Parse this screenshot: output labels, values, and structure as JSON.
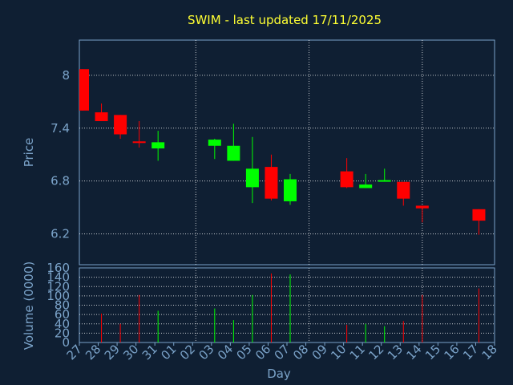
{
  "chart_data": {
    "title": "SWIM - last updated 17/11/2025",
    "price_chart": {
      "type": "candlestick",
      "ylabel": "Price",
      "ylim": [
        5.85,
        8.4
      ],
      "yticks": [
        "8",
        "7.4",
        "6.8",
        "6.2"
      ],
      "grid": true,
      "candles": [
        {
          "day": "27",
          "open": 8.07,
          "high": 8.07,
          "low": 7.6,
          "close": 7.6
        },
        {
          "day": "28",
          "open": 7.58,
          "high": 7.68,
          "low": 7.48,
          "close": 7.48
        },
        {
          "day": "29",
          "open": 7.55,
          "high": 7.55,
          "low": 7.28,
          "close": 7.33
        },
        {
          "day": "30",
          "open": 7.25,
          "high": 7.48,
          "low": 7.18,
          "close": 7.24
        },
        {
          "day": "31",
          "open": 7.17,
          "high": 7.37,
          "low": 7.03,
          "close": 7.24
        },
        {
          "day": "03",
          "open": 7.2,
          "high": 7.28,
          "low": 7.05,
          "close": 7.27
        },
        {
          "day": "04",
          "open": 7.03,
          "high": 7.45,
          "low": 7.03,
          "close": 7.2
        },
        {
          "day": "05",
          "open": 6.73,
          "high": 7.3,
          "low": 6.55,
          "close": 6.94
        },
        {
          "day": "06",
          "open": 6.96,
          "high": 7.1,
          "low": 6.58,
          "close": 6.6
        },
        {
          "day": "07",
          "open": 6.57,
          "high": 6.88,
          "low": 6.53,
          "close": 6.82
        },
        {
          "day": "10",
          "open": 6.91,
          "high": 7.06,
          "low": 6.72,
          "close": 6.73
        },
        {
          "day": "11",
          "open": 6.72,
          "high": 6.88,
          "low": 6.72,
          "close": 6.76
        },
        {
          "day": "12",
          "open": 6.8,
          "high": 6.94,
          "low": 6.8,
          "close": 6.81
        },
        {
          "day": "13",
          "open": 6.79,
          "high": 6.79,
          "low": 6.52,
          "close": 6.6
        },
        {
          "day": "14",
          "open": 6.52,
          "high": 6.52,
          "low": 6.33,
          "close": 6.49
        },
        {
          "day": "17",
          "open": 6.48,
          "high": 6.48,
          "low": 6.19,
          "close": 6.35
        }
      ]
    },
    "volume_chart": {
      "type": "bar",
      "ylabel": "Volume (0000)",
      "ylim": [
        0,
        160
      ],
      "yticks": [
        "160",
        "140",
        "120",
        "100",
        "80",
        "60",
        "40",
        "20",
        "0"
      ],
      "xlabel": "Day",
      "xticks": [
        "27",
        "28",
        "29",
        "30",
        "31",
        "01",
        "02",
        "03",
        "04",
        "05",
        "06",
        "07",
        "08",
        "09",
        "10",
        "11",
        "12",
        "13",
        "14",
        "15",
        "16",
        "17",
        "18"
      ],
      "bars": [
        {
          "day": "27",
          "value": 0,
          "direction": "down"
        },
        {
          "day": "28",
          "value": 62,
          "direction": "down"
        },
        {
          "day": "29",
          "value": 40,
          "direction": "down"
        },
        {
          "day": "30",
          "value": 102,
          "direction": "down"
        },
        {
          "day": "31",
          "value": 68,
          "direction": "up"
        },
        {
          "day": "03",
          "value": 73,
          "direction": "up"
        },
        {
          "day": "04",
          "value": 48,
          "direction": "up"
        },
        {
          "day": "05",
          "value": 102,
          "direction": "up"
        },
        {
          "day": "06",
          "value": 148,
          "direction": "down"
        },
        {
          "day": "07",
          "value": 146,
          "direction": "up"
        },
        {
          "day": "10",
          "value": 38,
          "direction": "down"
        },
        {
          "day": "11",
          "value": 40,
          "direction": "up"
        },
        {
          "day": "12",
          "value": 35,
          "direction": "up"
        },
        {
          "day": "13",
          "value": 46,
          "direction": "down"
        },
        {
          "day": "14",
          "value": 102,
          "direction": "down"
        },
        {
          "day": "17",
          "value": 116,
          "direction": "down"
        }
      ]
    },
    "colors": {
      "background": "#0f1f33",
      "axis": "#7aa2c8",
      "grid": "#ffffff",
      "title": "#ffff33",
      "up": "#00ff00",
      "down": "#ff0000"
    }
  }
}
